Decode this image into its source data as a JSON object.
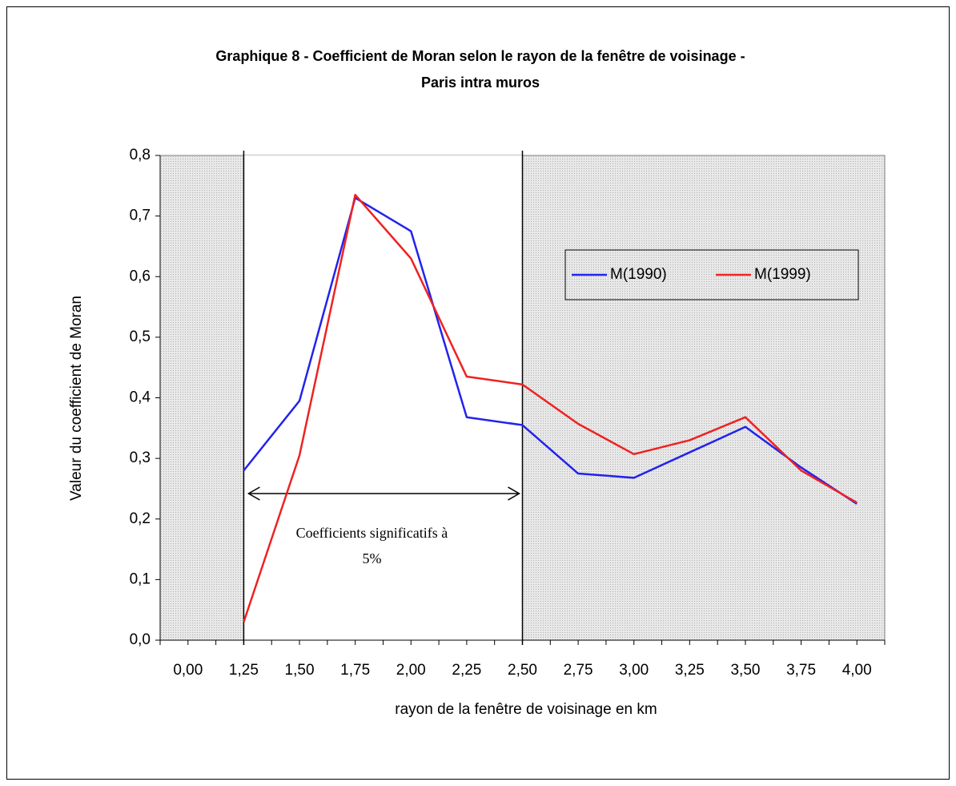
{
  "chart_data": {
    "type": "line",
    "title": [
      "Graphique 8 - Coefficient de Moran selon le rayon de la fenêtre de voisinage -",
      "Paris intra muros"
    ],
    "x_label": "rayon de la fenêtre de voisinage en km",
    "y_label": "Valeur du coefficient de Moran",
    "annotation": [
      "Coefficients significatifs à",
      "5%"
    ],
    "categories": [
      "0,00",
      "1,25",
      "1,50",
      "1,75",
      "2,00",
      "2,25",
      "2,50",
      "2,75",
      "3,00",
      "3,25",
      "3,50",
      "3,75",
      "4,00"
    ],
    "series": [
      {
        "name": "M(1990)",
        "color": "#2222ee",
        "values": [
          null,
          0.28,
          0.395,
          0.73,
          0.675,
          0.368,
          0.355,
          0.275,
          0.268,
          0.31,
          0.352,
          0.285,
          0.225
        ]
      },
      {
        "name": "M(1999)",
        "color": "#ee2222",
        "values": [
          null,
          0.03,
          0.305,
          0.735,
          0.63,
          0.435,
          0.422,
          0.357,
          0.307,
          0.33,
          0.368,
          0.28,
          0.227
        ]
      }
    ],
    "ylim": [
      0,
      0.8
    ],
    "yticks": [
      {
        "value": 0,
        "label": "0,0"
      },
      {
        "value": 0.1,
        "label": "0,1"
      },
      {
        "value": 0.2,
        "label": "0,2"
      },
      {
        "value": 0.3,
        "label": "0,3"
      },
      {
        "value": 0.4,
        "label": "0,4"
      },
      {
        "value": 0.5,
        "label": "0,5"
      },
      {
        "value": 0.6,
        "label": "0,6"
      },
      {
        "value": 0.7,
        "label": "0,7"
      },
      {
        "value": 0.8,
        "label": "0,8"
      }
    ],
    "legend": "upper right"
  }
}
